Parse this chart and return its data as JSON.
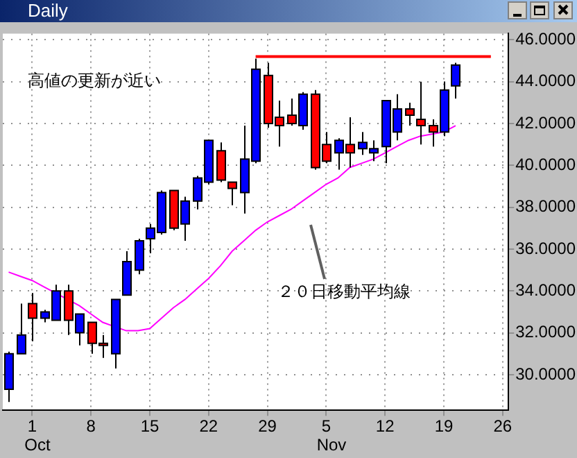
{
  "chart_data": {
    "type": "candlestick",
    "title": "Daily",
    "categories": [
      null,
      null,
      "1",
      null,
      null,
      null,
      null,
      "8",
      null,
      null,
      null,
      null,
      "15",
      null,
      null,
      null,
      null,
      "22",
      null,
      null,
      null,
      null,
      "29",
      null,
      null,
      null,
      null,
      "5",
      null,
      null,
      null,
      null,
      "12",
      null,
      null,
      null,
      null,
      "19",
      null,
      null,
      null,
      null,
      "26"
    ],
    "ohlc": [
      [
        29.3,
        31.1,
        28.7,
        31.0
      ],
      [
        31.0,
        33.4,
        31.0,
        31.9
      ],
      [
        33.4,
        33.9,
        31.6,
        32.7
      ],
      [
        32.7,
        33.1,
        32.5,
        33.0
      ],
      [
        32.6,
        34.3,
        32.6,
        34.0
      ],
      [
        34.0,
        34.3,
        31.9,
        32.6
      ],
      [
        32.0,
        32.9,
        31.4,
        32.9
      ],
      [
        32.5,
        32.5,
        31.0,
        31.5
      ],
      [
        31.5,
        31.9,
        30.8,
        31.4
      ],
      [
        31.0,
        33.6,
        30.3,
        33.6
      ],
      [
        33.8,
        35.9,
        33.8,
        35.4
      ],
      [
        35.0,
        36.5,
        34.8,
        36.4
      ],
      [
        36.5,
        37.2,
        35.8,
        37.0
      ],
      [
        36.8,
        38.8,
        36.7,
        38.7
      ],
      [
        38.8,
        38.8,
        36.9,
        37.0
      ],
      [
        37.2,
        38.5,
        36.4,
        38.3
      ],
      [
        38.3,
        39.5,
        37.9,
        39.4
      ],
      [
        39.2,
        41.2,
        39.1,
        41.2
      ],
      [
        40.7,
        41.1,
        39.2,
        39.3
      ],
      [
        39.2,
        39.2,
        38.1,
        38.9
      ],
      [
        38.7,
        41.9,
        37.7,
        40.3
      ],
      [
        40.2,
        45.1,
        40.1,
        44.6
      ],
      [
        44.3,
        44.9,
        41.8,
        42.0
      ],
      [
        42.3,
        43.1,
        40.9,
        41.9
      ],
      [
        42.4,
        43.2,
        41.9,
        42.0
      ],
      [
        41.9,
        43.5,
        41.7,
        43.4
      ],
      [
        43.4,
        43.6,
        39.8,
        39.9
      ],
      [
        41.0,
        41.6,
        40.1,
        40.2
      ],
      [
        40.6,
        41.3,
        39.8,
        41.2
      ],
      [
        41.0,
        42.3,
        39.9,
        40.6
      ],
      [
        40.8,
        41.6,
        40.5,
        41.1
      ],
      [
        40.6,
        41.2,
        40.2,
        40.8
      ],
      [
        40.9,
        43.1,
        40.1,
        43.1
      ],
      [
        41.6,
        43.4,
        41.2,
        42.7
      ],
      [
        42.7,
        43.0,
        41.9,
        42.4
      ],
      [
        42.2,
        44.0,
        41.0,
        41.9
      ],
      [
        41.9,
        42.2,
        40.9,
        41.6
      ],
      [
        41.6,
        44.0,
        41.4,
        43.6
      ],
      [
        43.8,
        44.9,
        43.2,
        44.8
      ],
      null,
      null,
      null,
      null
    ],
    "colors": [
      "#0000ff",
      "#0000ff",
      "#ff0000",
      "#0000ff",
      "#0000ff",
      "#ff0000",
      "#0000ff",
      "#ff0000",
      "#ff0000",
      "#0000ff",
      "#0000ff",
      "#0000ff",
      "#0000ff",
      "#0000ff",
      "#ff0000",
      "#0000ff",
      "#0000ff",
      "#0000ff",
      "#ff0000",
      "#ff0000",
      "#0000ff",
      "#0000ff",
      "#ff0000",
      "#ff0000",
      "#ff0000",
      "#0000ff",
      "#ff0000",
      "#ff0000",
      "#0000ff",
      "#ff0000",
      "#0000ff",
      "#0000ff",
      "#0000ff",
      "#0000ff",
      "#ff0000",
      "#ff0000",
      "#ff0000",
      "#0000ff",
      "#0000ff",
      null,
      null,
      null,
      null
    ],
    "series": [
      {
        "type": "line",
        "color": "#ff00ff",
        "values": [
          34.9,
          34.7,
          34.5,
          34.2,
          33.9,
          33.6,
          33.3,
          32.9,
          32.5,
          32.3,
          32.1,
          32.1,
          32.2,
          32.7,
          33.2,
          33.6,
          34.1,
          34.6,
          35.2,
          35.9,
          36.4,
          36.9,
          37.3,
          37.6,
          37.9,
          38.3,
          38.7,
          39.1,
          39.4,
          39.9,
          40.1,
          40.3,
          40.6,
          40.9,
          41.2,
          41.4,
          41.5,
          41.6,
          41.9,
          null,
          null,
          null,
          null
        ]
      },
      {
        "type": "line",
        "color": "#ff0000",
        "values": [
          null,
          null,
          null,
          null,
          null,
          null,
          null,
          null,
          null,
          null,
          null,
          null,
          null,
          null,
          null,
          null,
          null,
          null,
          null,
          null,
          null,
          45.2,
          null,
          null,
          null,
          null,
          null,
          null,
          null,
          null,
          null,
          null,
          null,
          null,
          null,
          null,
          null,
          null,
          null,
          null,
          null,
          45.2,
          null
        ]
      }
    ],
    "ylim": [
      28.3,
      46.3
    ],
    "yticks": [
      {
        "value": 30,
        "label": "30.0000"
      },
      {
        "value": 32,
        "label": "32.0000"
      },
      {
        "value": 34,
        "label": "34.0000"
      },
      {
        "value": 36,
        "label": "36.0000"
      },
      {
        "value": 38,
        "label": "38.0000"
      },
      {
        "value": 40,
        "label": "40.0000"
      },
      {
        "value": 42,
        "label": "42.0000"
      },
      {
        "value": 44,
        "label": "44.0000"
      },
      {
        "value": 46,
        "label": "46.0000"
      }
    ],
    "grid": true,
    "legend": false,
    "marker": "none",
    "annotations": [
      "高値の更新が近い",
      "２０日移動平均線",
      "Oct",
      "Nov"
    ]
  }
}
